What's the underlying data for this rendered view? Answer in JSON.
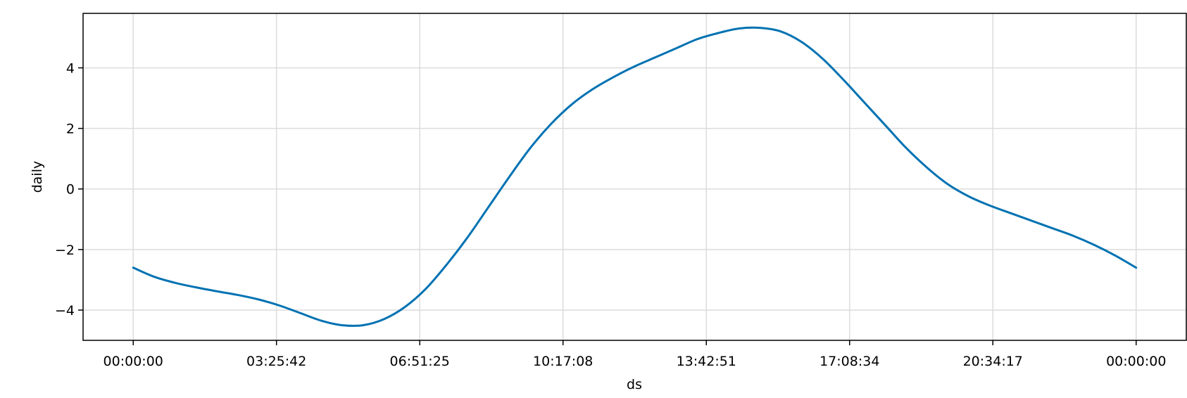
{
  "chart_data": {
    "type": "line",
    "title": "",
    "xlabel": "ds",
    "ylabel": "daily",
    "x_tick_labels": [
      "00:00:00",
      "03:25:42",
      "06:51:25",
      "10:17:08",
      "13:42:51",
      "17:08:34",
      "20:34:17",
      "00:00:00"
    ],
    "x_ticks_hours": [
      0,
      3.428,
      6.857,
      10.285,
      13.714,
      17.143,
      20.571,
      24
    ],
    "x_unit": "hours of day",
    "xlim": [
      -1.2,
      25.2
    ],
    "y_ticks": [
      -4,
      -2,
      0,
      2,
      4
    ],
    "ylim": [
      -5,
      5.8
    ],
    "grid": true,
    "series": [
      {
        "color": "#0072B2",
        "x": [
          0,
          0.5,
          1,
          1.5,
          2,
          2.5,
          3,
          3.5,
          4,
          4.5,
          5,
          5.5,
          6,
          6.5,
          7,
          7.5,
          8,
          8.5,
          9,
          9.5,
          10,
          10.5,
          11,
          11.5,
          12,
          12.5,
          13,
          13.5,
          14,
          14.5,
          15,
          15.5,
          16,
          16.5,
          17,
          17.5,
          18,
          18.5,
          19,
          19.5,
          20,
          20.5,
          21,
          21.5,
          22,
          22.5,
          23,
          23.5,
          24
        ],
        "y": [
          -2.6,
          -2.9,
          -3.1,
          -3.25,
          -3.38,
          -3.5,
          -3.65,
          -3.85,
          -4.1,
          -4.35,
          -4.5,
          -4.5,
          -4.3,
          -3.9,
          -3.3,
          -2.5,
          -1.6,
          -0.6,
          0.4,
          1.35,
          2.15,
          2.8,
          3.3,
          3.7,
          4.05,
          4.35,
          4.65,
          4.95,
          5.15,
          5.3,
          5.32,
          5.2,
          4.85,
          4.3,
          3.6,
          2.85,
          2.1,
          1.35,
          0.7,
          0.15,
          -0.25,
          -0.55,
          -0.8,
          -1.05,
          -1.3,
          -1.55,
          -1.85,
          -2.2,
          -2.6
        ]
      }
    ]
  }
}
